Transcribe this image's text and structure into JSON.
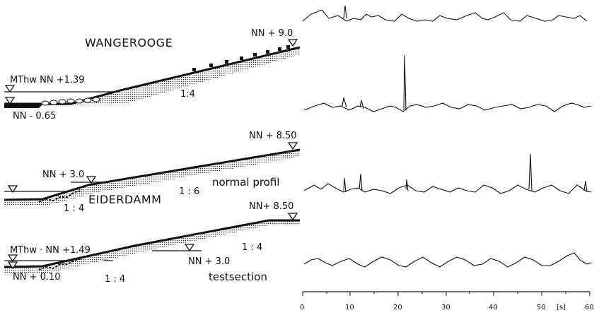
{
  "profiles": {
    "wangerooge": {
      "title": "WANGEROOGE",
      "top_level": "NN + 9.0",
      "mthw": "MThw  NN +1.39",
      "low_level": "NN - 0.65",
      "slope": "1:4"
    },
    "eiderdamm_normal": {
      "top_level": "NN + 8.50",
      "berm_level": "NN + 3.0",
      "slope_upper": "1 : 6",
      "slope_lower": "1 : 4",
      "caption": "normal profil"
    },
    "eiderdamm_test": {
      "title": "EIDERDAMM",
      "top_level": "NN+ 8.50",
      "mthw": "MThw · NN +1.49",
      "low_level": "NN + 0.10",
      "berm_level": "NN + 3.0",
      "slope_lower": "1 : 4",
      "slope_upper": "1 : 4",
      "caption": "testsection"
    }
  },
  "time_axis": {
    "ticks": [
      "0",
      "10",
      "20",
      "30",
      "40",
      "50"
    ],
    "unit": "[s]",
    "last_tick": "60"
  }
}
